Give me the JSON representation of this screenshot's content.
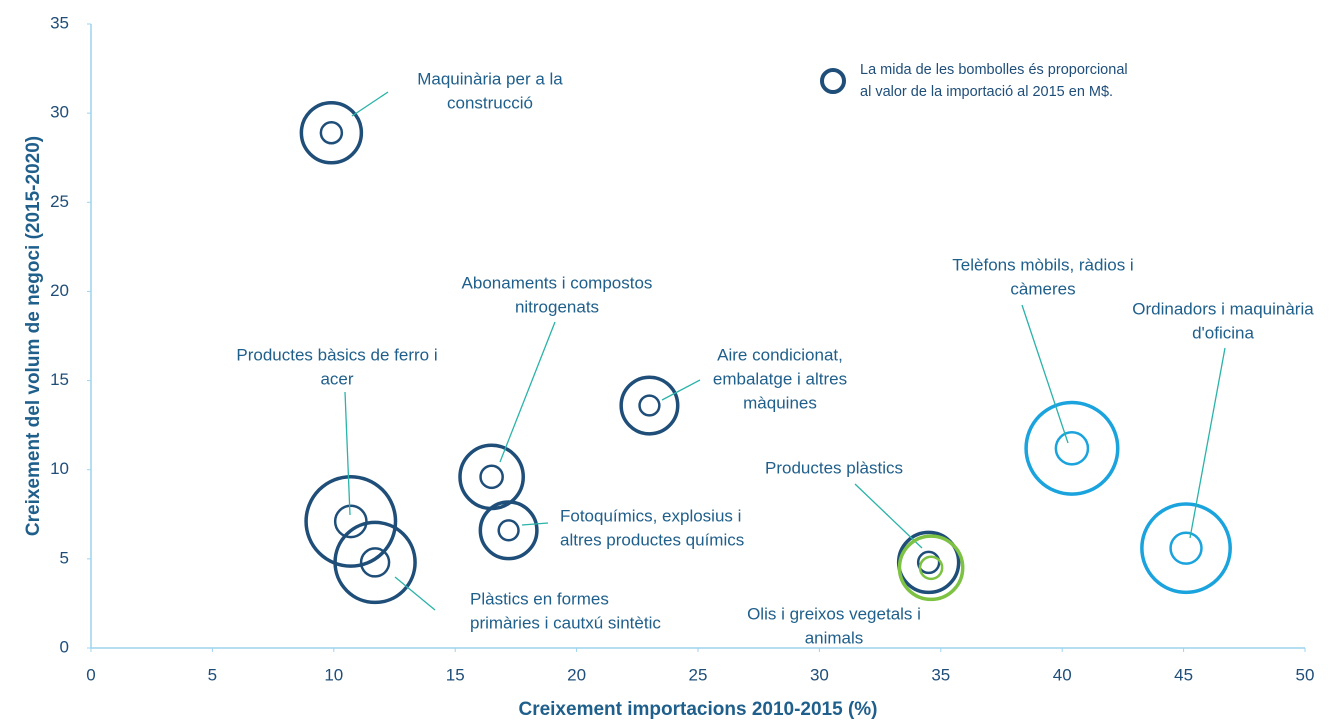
{
  "chart_data": {
    "type": "bubble",
    "x_label": "Creixement importacions 2010-2015 (%)",
    "y_label": "Creixement del volum de negoci (2015-2020)",
    "note": [
      "La mida de les bombolles és proporcional",
      "al valor de la importació al 2015 en M$."
    ],
    "xlim": [
      0,
      50
    ],
    "xticks": [
      0,
      5,
      10,
      15,
      20,
      25,
      30,
      35,
      40,
      45,
      50
    ],
    "ylim": [
      0,
      35
    ],
    "yticks": [
      0,
      5,
      10,
      15,
      20,
      25,
      30,
      35
    ],
    "points": [
      {
        "label": [
          "Maquinària per a la",
          "construcció"
        ],
        "x": 9.9,
        "y": 28.9,
        "size": 90,
        "color": "#1f4e79"
      },
      {
        "label": [
          "Productes bàsics de ferro i",
          "acer"
        ],
        "x": 10.7,
        "y": 7.1,
        "size": 200,
        "color": "#1f4e79"
      },
      {
        "label": [
          "Plàstics en formes",
          "primàries i cautxú sintètic"
        ],
        "x": 11.7,
        "y": 4.8,
        "size": 160,
        "color": "#1f4e79"
      },
      {
        "label": [
          "Abonaments i compostos",
          "nitrogenats"
        ],
        "x": 16.5,
        "y": 9.6,
        "size": 100,
        "color": "#1f4e79"
      },
      {
        "label": [
          "Fotoquímics, explosius i",
          "altres productes químics"
        ],
        "x": 17.2,
        "y": 6.6,
        "size": 80,
        "color": "#1f4e79"
      },
      {
        "label": [
          "Aire condicionat,",
          "embalatge i altres",
          "màquines"
        ],
        "x": 23.0,
        "y": 13.6,
        "size": 80,
        "color": "#1f4e79"
      },
      {
        "label": [
          "Productes plàstics"
        ],
        "x": 34.5,
        "y": 4.8,
        "size": 90,
        "color": "#1f4e79"
      },
      {
        "label": [
          "Olis i greixos vegetals i",
          "animals"
        ],
        "x": 34.6,
        "y": 4.5,
        "size": 100,
        "color": "#7dc242"
      },
      {
        "label": [
          "Telèfons mòbils, ràdios i",
          "càmeres"
        ],
        "x": 40.4,
        "y": 11.2,
        "size": 210,
        "color": "#1aa3dd"
      },
      {
        "label": [
          "Ordinadors i maquinària",
          "d'oficina"
        ],
        "x": 45.1,
        "y": 5.6,
        "size": 195,
        "color": "#1aa3dd"
      }
    ]
  }
}
